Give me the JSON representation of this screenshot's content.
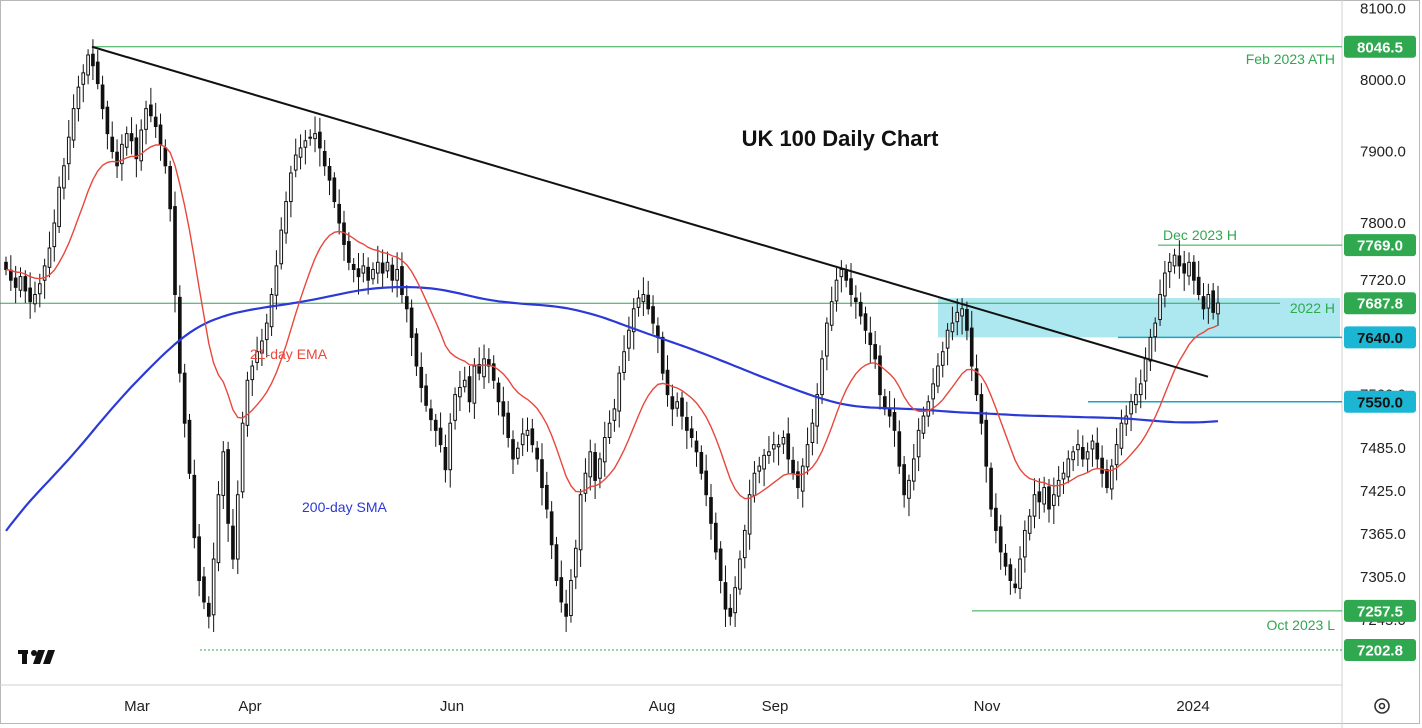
{
  "chart_data": {
    "type": "candlestick",
    "title": "UK 100 Daily Chart",
    "ylim": [
      7195,
      8110
    ],
    "y_ticks": [
      "8100.0",
      "8000.0",
      "7900.0",
      "7800.0",
      "7720.0",
      "7560.0",
      "7485.0",
      "7425.0",
      "7365.0",
      "7305.0",
      "7245.0"
    ],
    "x_ticks": [
      "Mar",
      "Apr",
      "Jun",
      "Aug",
      "Sep",
      "Nov",
      "2024"
    ],
    "price_labels": [
      {
        "value": "8046.5",
        "style": "green"
      },
      {
        "value": "7769.0",
        "style": "green"
      },
      {
        "value": "7687.8",
        "style": "green"
      },
      {
        "value": "7640.0",
        "style": "cyan"
      },
      {
        "value": "7550.0",
        "style": "cyan"
      },
      {
        "value": "7257.5",
        "style": "green"
      },
      {
        "value": "7202.8",
        "style": "green"
      }
    ],
    "annotations": {
      "feb_ath": "Feb 2023 ATH",
      "dec_high": "Dec 2023 H",
      "h2022": "2022 H",
      "oct_low": "Oct 2023 L",
      "ema": "21-day EMA",
      "sma": "200-day SMA"
    },
    "levels": {
      "feb_ath": 8046.5,
      "dec_high": 7769.0,
      "h2022": 7687.8,
      "support_1": 7640.0,
      "support_2": 7550.0,
      "oct_low": 7257.5,
      "low": 7202.8
    },
    "trendline": [
      {
        "day": 18,
        "value": 8046.5
      },
      {
        "day": 256,
        "value": 7585
      }
    ],
    "zone": [
      7640,
      7695
    ],
    "series_close": [
      7735,
      7720,
      7710,
      7725,
      7705,
      7690,
      7700,
      7715,
      7740,
      7765,
      7800,
      7850,
      7880,
      7920,
      7960,
      7990,
      8010,
      8035,
      8020,
      7995,
      7960,
      7925,
      7900,
      7880,
      7910,
      7925,
      7915,
      7890,
      7930,
      7960,
      7950,
      7935,
      7910,
      7880,
      7820,
      7700,
      7590,
      7520,
      7450,
      7360,
      7300,
      7270,
      7250,
      7330,
      7420,
      7480,
      7380,
      7330,
      7420,
      7520,
      7580,
      7600,
      7620,
      7635,
      7660,
      7700,
      7740,
      7790,
      7830,
      7870,
      7895,
      7905,
      7915,
      7920,
      7925,
      7905,
      7880,
      7860,
      7830,
      7800,
      7770,
      7745,
      7735,
      7725,
      7740,
      7720,
      7735,
      7745,
      7730,
      7745,
      7720,
      7735,
      7700,
      7680,
      7640,
      7600,
      7570,
      7545,
      7525,
      7510,
      7490,
      7455,
      7520,
      7560,
      7570,
      7580,
      7550,
      7600,
      7590,
      7610,
      7600,
      7580,
      7550,
      7530,
      7500,
      7470,
      7485,
      7505,
      7510,
      7490,
      7470,
      7430,
      7400,
      7350,
      7300,
      7270,
      7250,
      7300,
      7345,
      7420,
      7450,
      7480,
      7440,
      7470,
      7500,
      7520,
      7540,
      7590,
      7620,
      7650,
      7680,
      7695,
      7700,
      7680,
      7660,
      7640,
      7590,
      7560,
      7540,
      7550,
      7530,
      7510,
      7500,
      7480,
      7450,
      7420,
      7380,
      7340,
      7300,
      7260,
      7250,
      7290,
      7330,
      7370,
      7420,
      7450,
      7460,
      7475,
      7480,
      7490,
      7490,
      7500,
      7470,
      7450,
      7430,
      7460,
      7490,
      7520,
      7560,
      7610,
      7660,
      7690,
      7720,
      7735,
      7720,
      7700,
      7690,
      7670,
      7650,
      7630,
      7610,
      7560,
      7540,
      7530,
      7510,
      7460,
      7420,
      7440,
      7470,
      7510,
      7530,
      7550,
      7575,
      7600,
      7620,
      7650,
      7660,
      7675,
      7680,
      7650,
      7600,
      7560,
      7520,
      7460,
      7400,
      7370,
      7340,
      7320,
      7300,
      7290,
      7330,
      7370,
      7390,
      7420,
      7410,
      7430,
      7400,
      7420,
      7440,
      7450,
      7470,
      7480,
      7490,
      7470,
      7480,
      7495,
      7470,
      7450,
      7430,
      7460,
      7490,
      7520,
      7530,
      7550,
      7560,
      7575,
      7610,
      7640,
      7660,
      7700,
      7730,
      7745,
      7755,
      7740,
      7730,
      7745,
      7720,
      7700,
      7680,
      7700,
      7675,
      7688
    ]
  }
}
